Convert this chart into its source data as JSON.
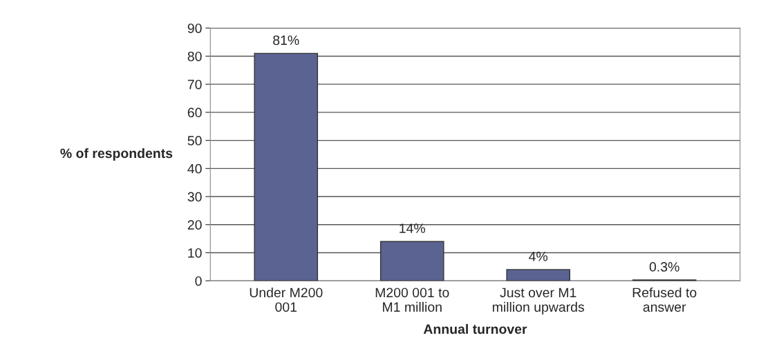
{
  "chart_data": {
    "type": "bar",
    "categories": [
      "Under M200\n001",
      "M200 001 to\nM1 million",
      "Just over M1\nmillion upwards",
      "Refused to\nanswer"
    ],
    "values": [
      81,
      14,
      4,
      0.3
    ],
    "value_labels": [
      "81%",
      "14%",
      "4%",
      "0.3%"
    ],
    "color": "#5a6391",
    "ylabel": "% of respondents",
    "xlabel": "Annual turnover",
    "ylim": [
      0,
      90
    ],
    "yticks": [
      0,
      10,
      20,
      30,
      40,
      50,
      60,
      70,
      80,
      90
    ],
    "grid": "y",
    "legend": false
  }
}
